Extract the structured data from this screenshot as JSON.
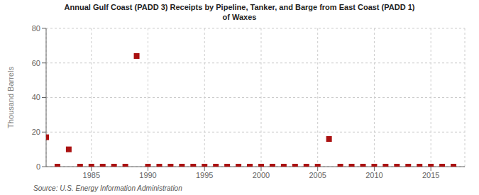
{
  "chart_data": {
    "type": "scatter",
    "title": "Annual Gulf Coast (PADD 3) Receipts by Pipeline, Tanker, and Barge from East Coast (PADD 1)\nof Waxes",
    "ylabel": "Thousand Barrels",
    "annotations": [
      "Source: U.S. Energy Information Administration"
    ],
    "x": [
      1981,
      1982,
      1983,
      1984,
      1985,
      1986,
      1987,
      1988,
      1989,
      1990,
      1991,
      1992,
      1993,
      1994,
      1995,
      1996,
      1997,
      1998,
      1999,
      2000,
      2001,
      2002,
      2003,
      2004,
      2005,
      2006,
      2007,
      2008,
      2009,
      2010,
      2011,
      2012,
      2013,
      2014,
      2015,
      2016,
      2017
    ],
    "values": [
      17,
      0,
      10,
      0,
      0,
      0,
      0,
      0,
      64,
      0,
      0,
      0,
      0,
      0,
      0,
      0,
      0,
      0,
      0,
      0,
      0,
      0,
      0,
      0,
      0,
      16,
      0,
      0,
      0,
      0,
      0,
      0,
      0,
      0,
      0,
      0,
      0
    ],
    "color": "#aa1111",
    "marker": "square",
    "xlim": [
      1981,
      2018
    ],
    "xticks": [
      1985,
      1990,
      1995,
      2000,
      2005,
      2010,
      2015
    ],
    "ylim": [
      0,
      80
    ],
    "yticks": [
      0,
      20,
      40,
      60,
      80
    ],
    "grid": true
  }
}
